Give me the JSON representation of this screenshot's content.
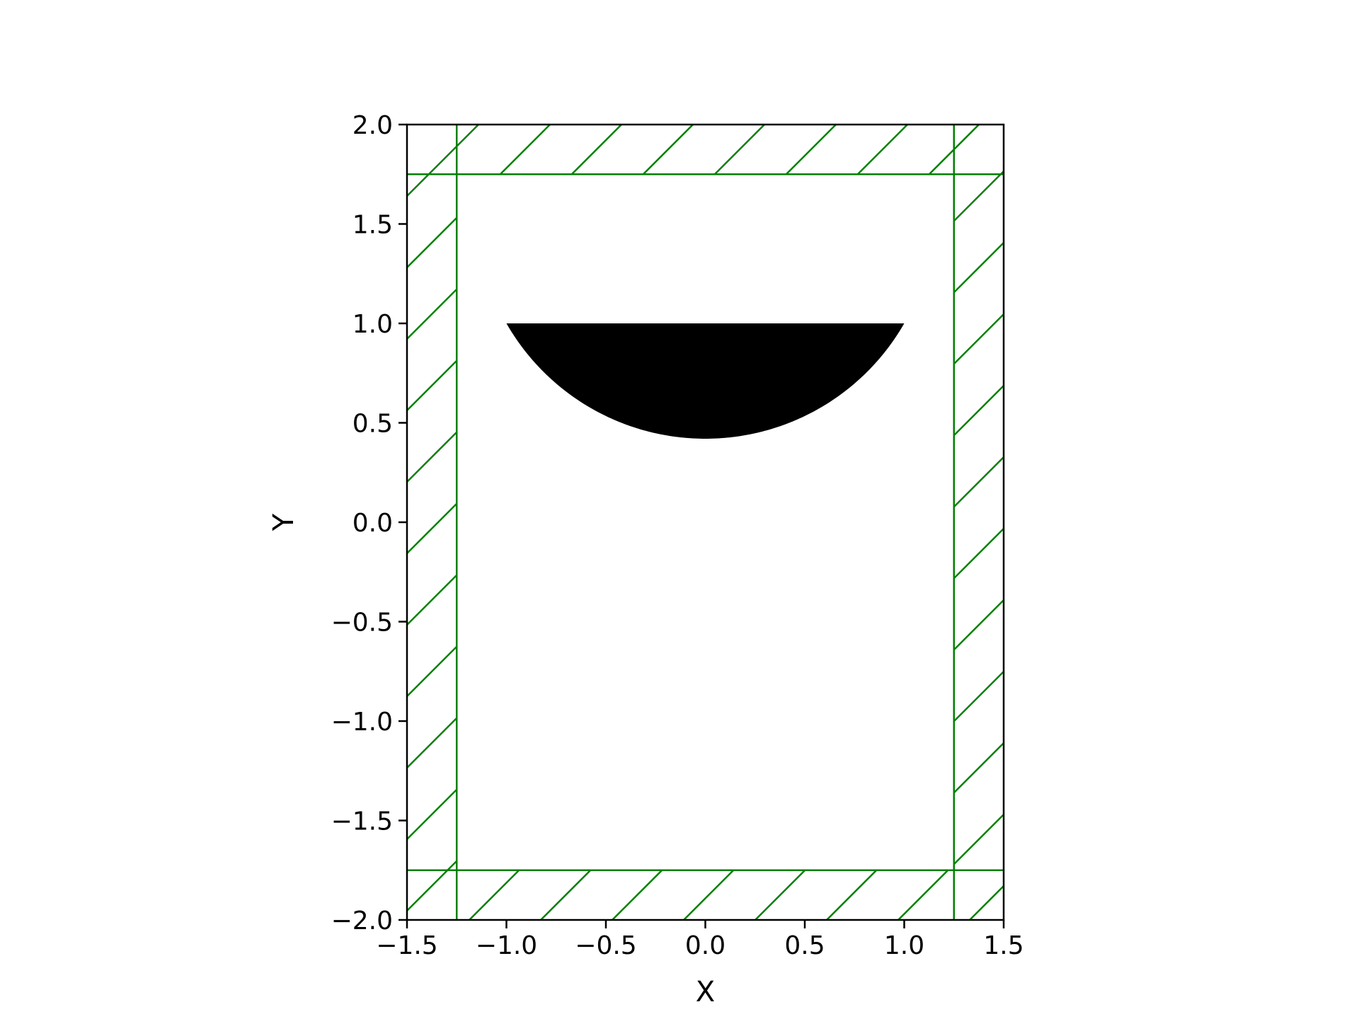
{
  "chart_data": {
    "type": "geometry-plot",
    "title": "",
    "xlabel": "X",
    "ylabel": "Y",
    "xlim": [
      -1.5,
      1.5
    ],
    "ylim": [
      -2.0,
      2.0
    ],
    "x_ticks": [
      -1.5,
      -1.0,
      -0.5,
      0.0,
      0.5,
      1.0,
      1.5
    ],
    "x_tick_labels": [
      "−1.5",
      "−1.0",
      "−0.5",
      "0.0",
      "0.5",
      "1.0",
      "1.5"
    ],
    "y_ticks": [
      -2.0,
      -1.5,
      -1.0,
      -0.5,
      0.0,
      0.5,
      1.0,
      1.5,
      2.0
    ],
    "y_tick_labels": [
      "−2.0",
      "−1.5",
      "−1.0",
      "−0.5",
      "0.0",
      "0.5",
      "1.0",
      "1.5",
      "2.0"
    ],
    "grid": false,
    "shape": {
      "kind": "circular-segment",
      "color": "#000000",
      "chord_y": 1.0,
      "x_range": [
        -1.0,
        1.0
      ],
      "bottom_y": 0.42
    },
    "boundary_region": {
      "color": "#008000",
      "hatch": "diagonal",
      "inner_x": [
        -1.25,
        1.25
      ],
      "inner_y": [
        -1.75,
        1.75
      ]
    }
  }
}
